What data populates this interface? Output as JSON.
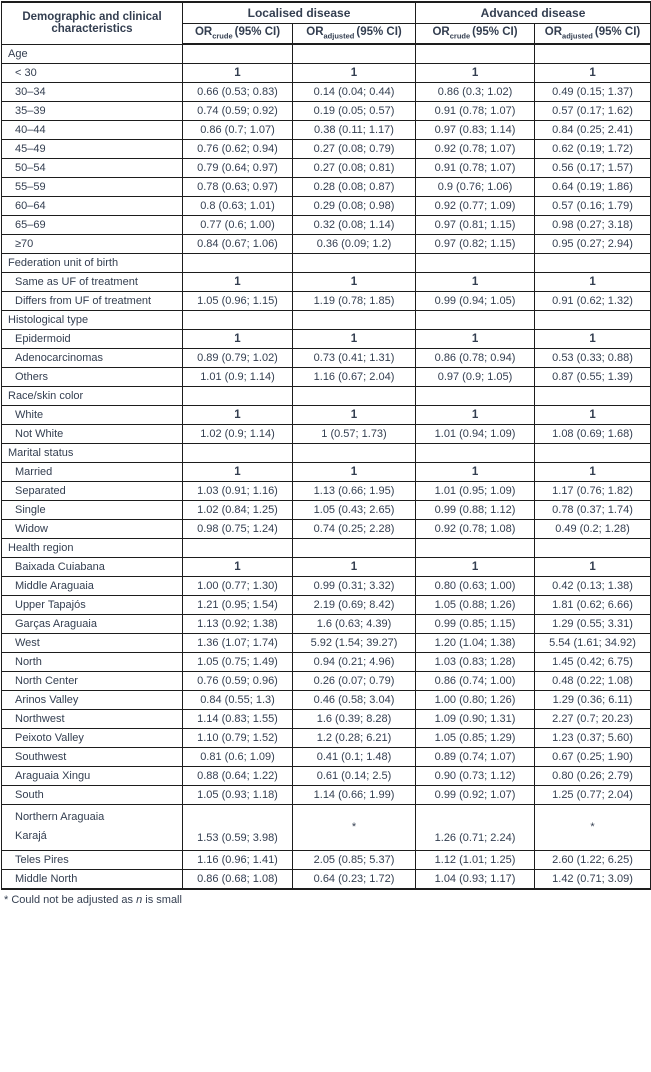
{
  "table": {
    "col1_header": "Demographic and clinical characteristics",
    "or_label": "OR",
    "crude_label": "crude",
    "adjusted_label": "adjusted",
    "ci_label": "(95% CI)",
    "groups": [
      {
        "label": "Localised disease"
      },
      {
        "label": "Advanced disease"
      }
    ],
    "rows": [
      {
        "type": "section",
        "label": "Age"
      },
      {
        "type": "data",
        "label": "< 30",
        "values": [
          "1",
          "1",
          "1",
          "1"
        ]
      },
      {
        "type": "data",
        "label": "30–34",
        "values": [
          "0.66 (0.53; 0.83)",
          "0.14 (0.04; 0.44)",
          "0.86 (0.3; 1.02)",
          "0.49 (0.15; 1.37)"
        ]
      },
      {
        "type": "data",
        "label": "35–39",
        "values": [
          "0.74 (0.59; 0.92)",
          "0.19 (0.05; 0.57)",
          "0.91 (0.78; 1.07)",
          "0.57 (0.17; 1.62)"
        ]
      },
      {
        "type": "data",
        "label": "40–44",
        "values": [
          "0.86 (0.7; 1.07)",
          "0.38 (0.11; 1.17)",
          "0.97 (0.83; 1.14)",
          "0.84 (0.25; 2.41)"
        ]
      },
      {
        "type": "data",
        "label": "45–49",
        "values": [
          "0.76 (0.62; 0.94)",
          "0.27 (0.08; 0.79)",
          "0.92 (0.78; 1.07)",
          "0.62 (0.19; 1.72)"
        ]
      },
      {
        "type": "data",
        "label": "50–54",
        "values": [
          "0.79 (0.64; 0.97)",
          "0.27 (0.08; 0.81)",
          "0.91 (0.78; 1.07)",
          "0.56 (0.17; 1.57)"
        ]
      },
      {
        "type": "data",
        "label": "55–59",
        "values": [
          "0.78 (0.63; 0.97)",
          "0.28 (0.08; 0.87)",
          "0.9 (0.76; 1.06)",
          "0.64 (0.19; 1.86)"
        ]
      },
      {
        "type": "data",
        "label": "60–64",
        "values": [
          "0.8 (0.63; 1.01)",
          "0.29 (0.08; 0.98)",
          "0.92 (0.77; 1.09)",
          "0.57 (0.16; 1.79)"
        ]
      },
      {
        "type": "data",
        "label": "65–69",
        "values": [
          "0.77 (0.6; 1.00)",
          "0.32 (0.08; 1.14)",
          "0.97 (0.81; 1.15)",
          "0.98 (0.27; 3.18)"
        ]
      },
      {
        "type": "data",
        "label": "≥70",
        "values": [
          "0.84 (0.67; 1.06)",
          "0.36 (0.09; 1.2)",
          "0.97 (0.82; 1.15)",
          "0.95 (0.27; 2.94)"
        ]
      },
      {
        "type": "section",
        "label": "Federation unit of birth"
      },
      {
        "type": "data",
        "label": "Same as UF of treatment",
        "values": [
          "1",
          "1",
          "1",
          "1"
        ]
      },
      {
        "type": "data",
        "label": "Differs from UF of treatment",
        "values": [
          "1.05 (0.96; 1.15)",
          "1.19 (0.78; 1.85)",
          "0.99 (0.94; 1.05)",
          "0.91 (0.62; 1.32)"
        ]
      },
      {
        "type": "section",
        "label": "Histological type"
      },
      {
        "type": "data",
        "label": "Epidermoid",
        "values": [
          "1",
          "1",
          "1",
          "1"
        ]
      },
      {
        "type": "data",
        "label": "Adenocarcinomas",
        "values": [
          "0.89 (0.79; 1.02)",
          "0.73 (0.41; 1.31)",
          "0.86 (0.78; 0.94)",
          "0.53 (0.33; 0.88)"
        ]
      },
      {
        "type": "data",
        "label": "Others",
        "values": [
          "1.01 (0.9; 1.14)",
          "1.16 (0.67; 2.04)",
          "0.97 (0.9; 1.05)",
          "0.87 (0.55; 1.39)"
        ]
      },
      {
        "type": "section",
        "label": "Race/skin color"
      },
      {
        "type": "data",
        "label": "White",
        "values": [
          "1",
          "1",
          "1",
          "1"
        ]
      },
      {
        "type": "data",
        "label": "Not White",
        "values": [
          "1.02 (0.9; 1.14)",
          "1 (0.57; 1.73)",
          "1.01 (0.94; 1.09)",
          "1.08 (0.69; 1.68)"
        ]
      },
      {
        "type": "section",
        "label": "Marital status"
      },
      {
        "type": "data",
        "label": "Married",
        "values": [
          "1",
          "1",
          "1",
          "1"
        ]
      },
      {
        "type": "data",
        "label": "Separated",
        "values": [
          "1.03 (0.91; 1.16)",
          "1.13 (0.66; 1.95)",
          "1.01 (0.95; 1.09)",
          "1.17 (0.76; 1.82)"
        ]
      },
      {
        "type": "data",
        "label": "Single",
        "values": [
          "1.02 (0.84; 1.25)",
          "1.05 (0.43; 2.65)",
          "0.99 (0.88; 1.12)",
          "0.78 (0.37; 1.74)"
        ]
      },
      {
        "type": "data",
        "label": "Widow",
        "values": [
          "0.98 (0.75; 1.24)",
          "0.74 (0.25; 2.28)",
          "0.92 (0.78; 1.08)",
          "0.49 (0.2; 1.28)"
        ]
      },
      {
        "type": "section",
        "label": "Health region"
      },
      {
        "type": "data",
        "label": "Baixada Cuiabana",
        "values": [
          "1",
          "1",
          "1",
          "1"
        ]
      },
      {
        "type": "data",
        "label": "Middle Araguaia",
        "values": [
          "1.00 (0.77; 1.30)",
          "0.99 (0.31; 3.32)",
          "0.80 (0.63; 1.00)",
          "0.42 (0.13; 1.38)"
        ]
      },
      {
        "type": "data",
        "label": "Upper Tapajós",
        "values": [
          "1.21 (0.95; 1.54)",
          "2.19 (0.69; 8.42)",
          "1.05 (0.88; 1.26)",
          "1.81 (0.62; 6.66)"
        ]
      },
      {
        "type": "data",
        "label": "Garças Araguaia",
        "values": [
          "1.13 (0.92; 1.38)",
          "1.6 (0.63; 4.39)",
          "0.99 (0.85; 1.15)",
          "1.29 (0.55; 3.31)"
        ]
      },
      {
        "type": "data",
        "label": "West",
        "values": [
          "1.36 (1.07; 1.74)",
          "5.92 (1.54; 39.27)",
          "1.20 (1.04; 1.38)",
          "5.54 (1.61; 34.92)"
        ]
      },
      {
        "type": "data",
        "label": "North",
        "values": [
          "1.05 (0.75; 1.49)",
          "0.94 (0.21; 4.96)",
          "1.03 (0.83; 1.28)",
          "1.45 (0.42; 6.75)"
        ]
      },
      {
        "type": "data",
        "label": "North Center",
        "values": [
          "0.76 (0.59; 0.96)",
          "0.26 (0.07; 0.79)",
          "0.86 (0.74; 1.00)",
          "0.48 (0.22; 1.08)"
        ]
      },
      {
        "type": "data",
        "label": "Arinos Valley",
        "values": [
          "0.84 (0.55; 1.3)",
          "0.46 (0.58; 3.04)",
          "1.00 (0.80; 1.26)",
          "1.29 (0.36; 6.11)"
        ]
      },
      {
        "type": "data",
        "label": "Northwest",
        "values": [
          "1.14 (0.83; 1.55)",
          "1.6 (0.39; 8.28)",
          "1.09 (0.90; 1.31)",
          "2.27 (0.7; 20.23)"
        ]
      },
      {
        "type": "data",
        "label": "Peixoto Valley",
        "values": [
          "1.10 (0.79; 1.52)",
          "1.2 (0.28; 6.21)",
          "1.05 (0.85; 1.29)",
          "1.23 (0.37; 5.60)"
        ]
      },
      {
        "type": "data",
        "label": "Southwest",
        "values": [
          "0.81 (0.6; 1.09)",
          "0.41 (0.1; 1.48)",
          "0.89 (0.74; 1.07)",
          "0.67 (0.25; 1.90)"
        ]
      },
      {
        "type": "data",
        "label": "Araguaia Xingu",
        "values": [
          "0.88 (0.64; 1.22)",
          "0.61 (0.14; 2.5)",
          "0.90 (0.73; 1.12)",
          "0.80 (0.26; 2.79)"
        ]
      },
      {
        "type": "data",
        "label": "South",
        "values": [
          "1.05 (0.93; 1.18)",
          "1.14 (0.66; 1.99)",
          "0.99 (0.92; 1.07)",
          "1.25 (0.77; 2.04)"
        ]
      },
      {
        "type": "data",
        "tall": true,
        "label": "Northern Araguaia\nKarajá",
        "values": [
          "1.53 (0.59; 3.98)",
          "*",
          "1.26 (0.71; 2.24)",
          "*"
        ]
      },
      {
        "type": "data",
        "label": "Teles Pires",
        "values": [
          "1.16 (0.96; 1.41)",
          "2.05 (0.85; 5.37)",
          "1.12 (1.01; 1.25)",
          "2.60 (1.22; 6.25)"
        ]
      },
      {
        "type": "data",
        "label": "Middle North",
        "values": [
          "0.86 (0.68; 1.08)",
          "0.64 (0.23; 1.72)",
          "1.04 (0.93; 1.17)",
          "1.42 (0.71; 3.09)"
        ]
      }
    ]
  },
  "footnote": {
    "marker": "*",
    "text_before": " Could not be adjusted as ",
    "italic_word": "n",
    "text_after": " is small"
  },
  "colors": {
    "text": "#333e50",
    "border": "#1d1d1d",
    "background": "#ffffff"
  }
}
